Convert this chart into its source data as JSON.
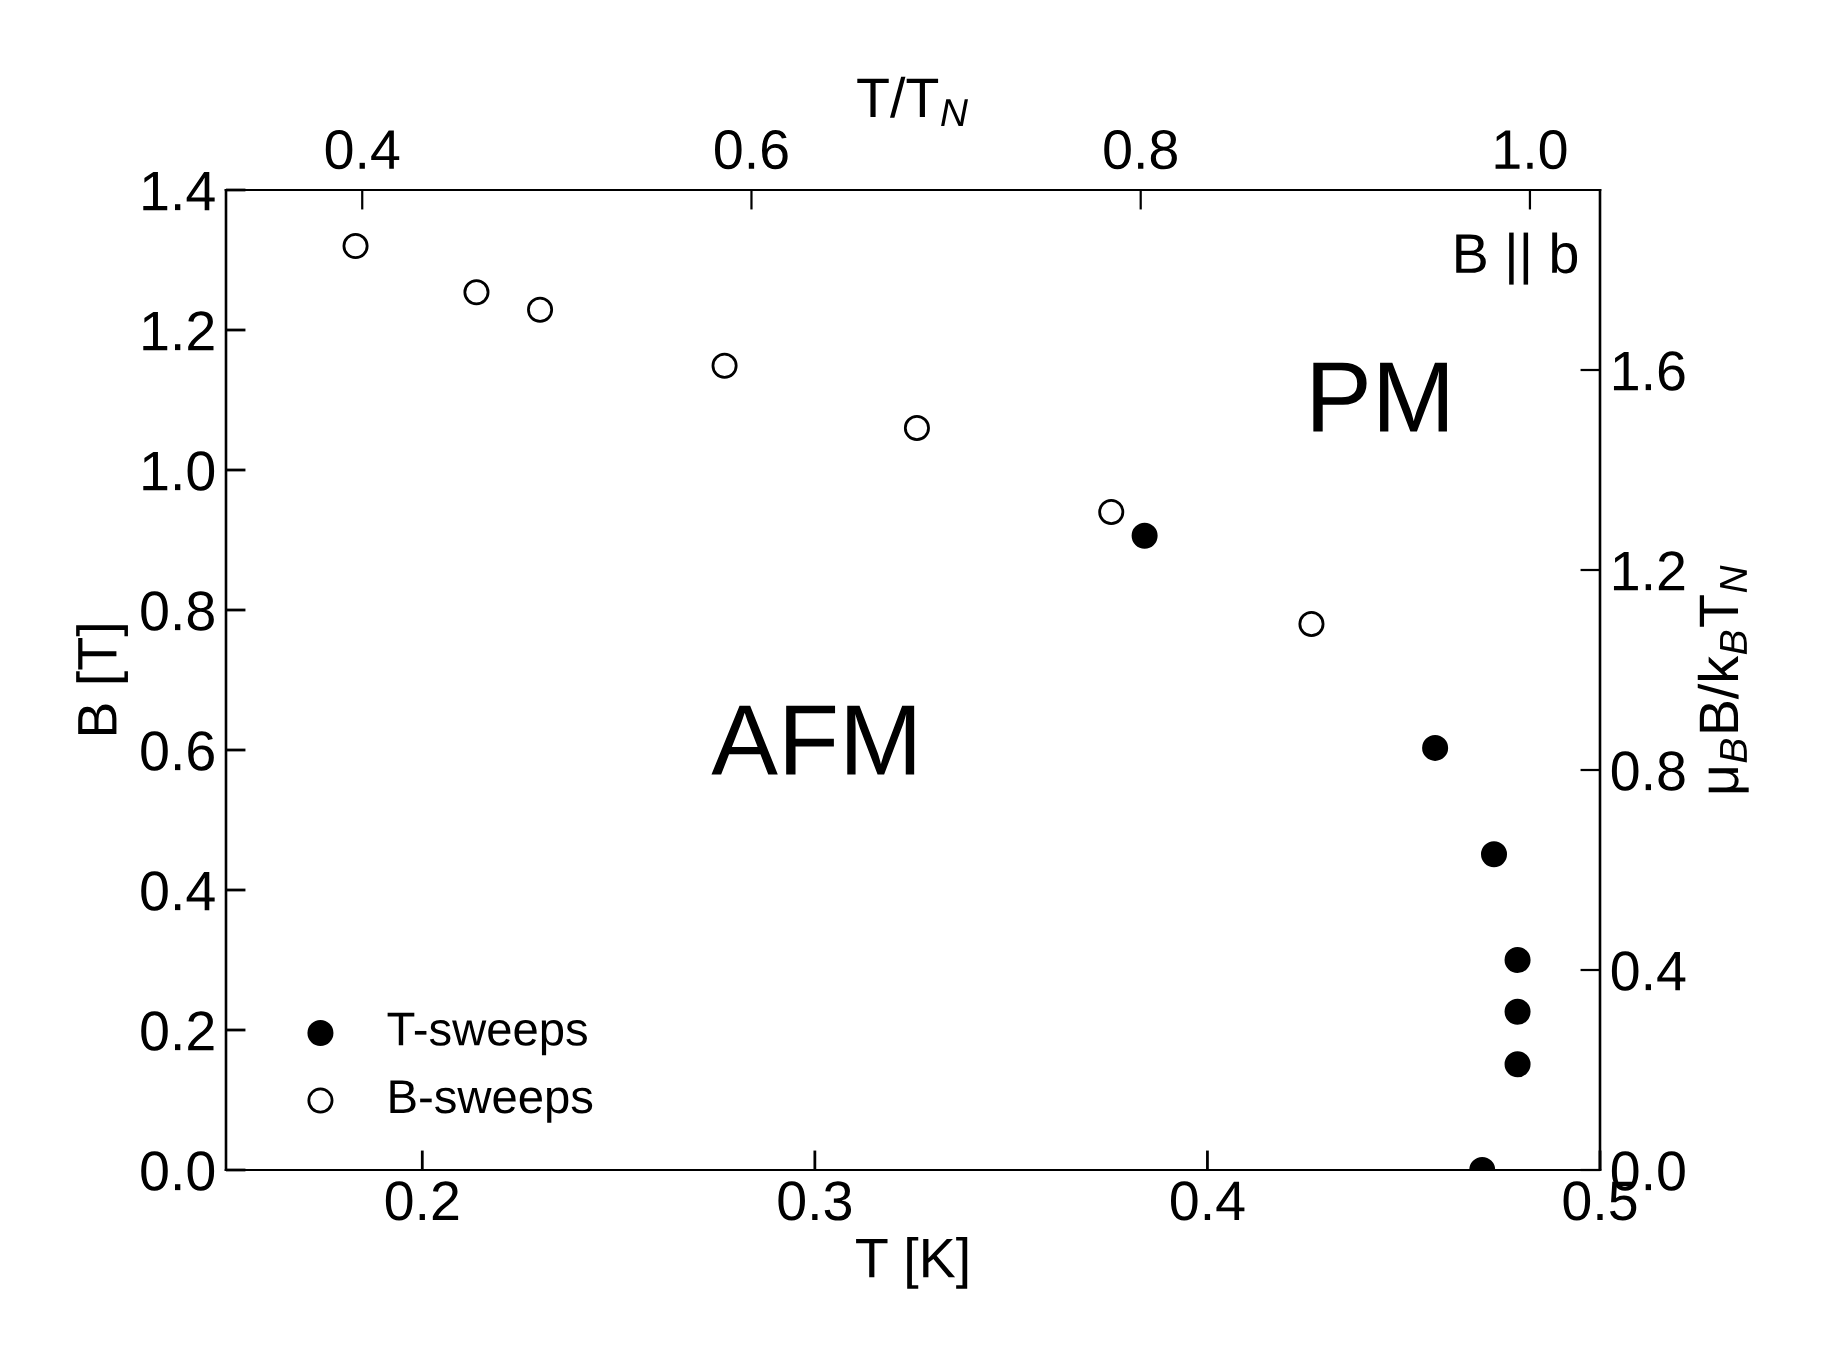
{
  "chart_data": {
    "type": "scatter",
    "xlabel": "T [K]",
    "ylabel": "B [T]",
    "y2label": "μ$_{B}$B/k$_{B}$T$_{N}$",
    "x2label": "T/T$_{N}$",
    "xlim": [
      0.15,
      0.5
    ],
    "xticks": [
      0.2,
      0.3,
      0.4,
      0.5
    ],
    "ylim": [
      0.0,
      1.4
    ],
    "yticks": [
      {
        "value": 0,
        "label": "0.0"
      },
      0.2,
      0.4,
      0.6,
      0.8,
      {
        "value": 1,
        "label": "1.0"
      },
      1.2,
      1.4
    ],
    "y2lim": [
      0.0,
      1.96
    ],
    "y2ticks": [
      {
        "value": 0,
        "label": "0.0"
      },
      0.4,
      0.8,
      1.2,
      1.6
    ],
    "x2lim": [
      0.33,
      1.036
    ],
    "x2ticks": [
      0.4,
      0.6,
      0.8,
      {
        "value": 1,
        "label": "1.0"
      }
    ],
    "marker": "circle",
    "legend": "bottom left",
    "grid": false,
    "series": [
      {
        "name": "T-sweeps",
        "color": "#000000",
        "x": [
          0.384,
          0.458,
          0.473,
          0.479,
          0.479,
          0.479,
          0.47
        ],
        "values": [
          0.906,
          0.603,
          0.451,
          0.3,
          0.226,
          0.151,
          0.0
        ]
      },
      {
        "name": "B-sweeps",
        "color": "#ffffff",
        "x": [
          0.183,
          0.2138,
          0.23,
          0.277,
          0.326,
          0.3755,
          0.4265
        ],
        "values": [
          1.32,
          1.254,
          1.229,
          1.149,
          1.06,
          0.94,
          0.78
        ]
      }
    ],
    "annotations": [
      "AFM",
      "PM",
      "B || b"
    ]
  }
}
